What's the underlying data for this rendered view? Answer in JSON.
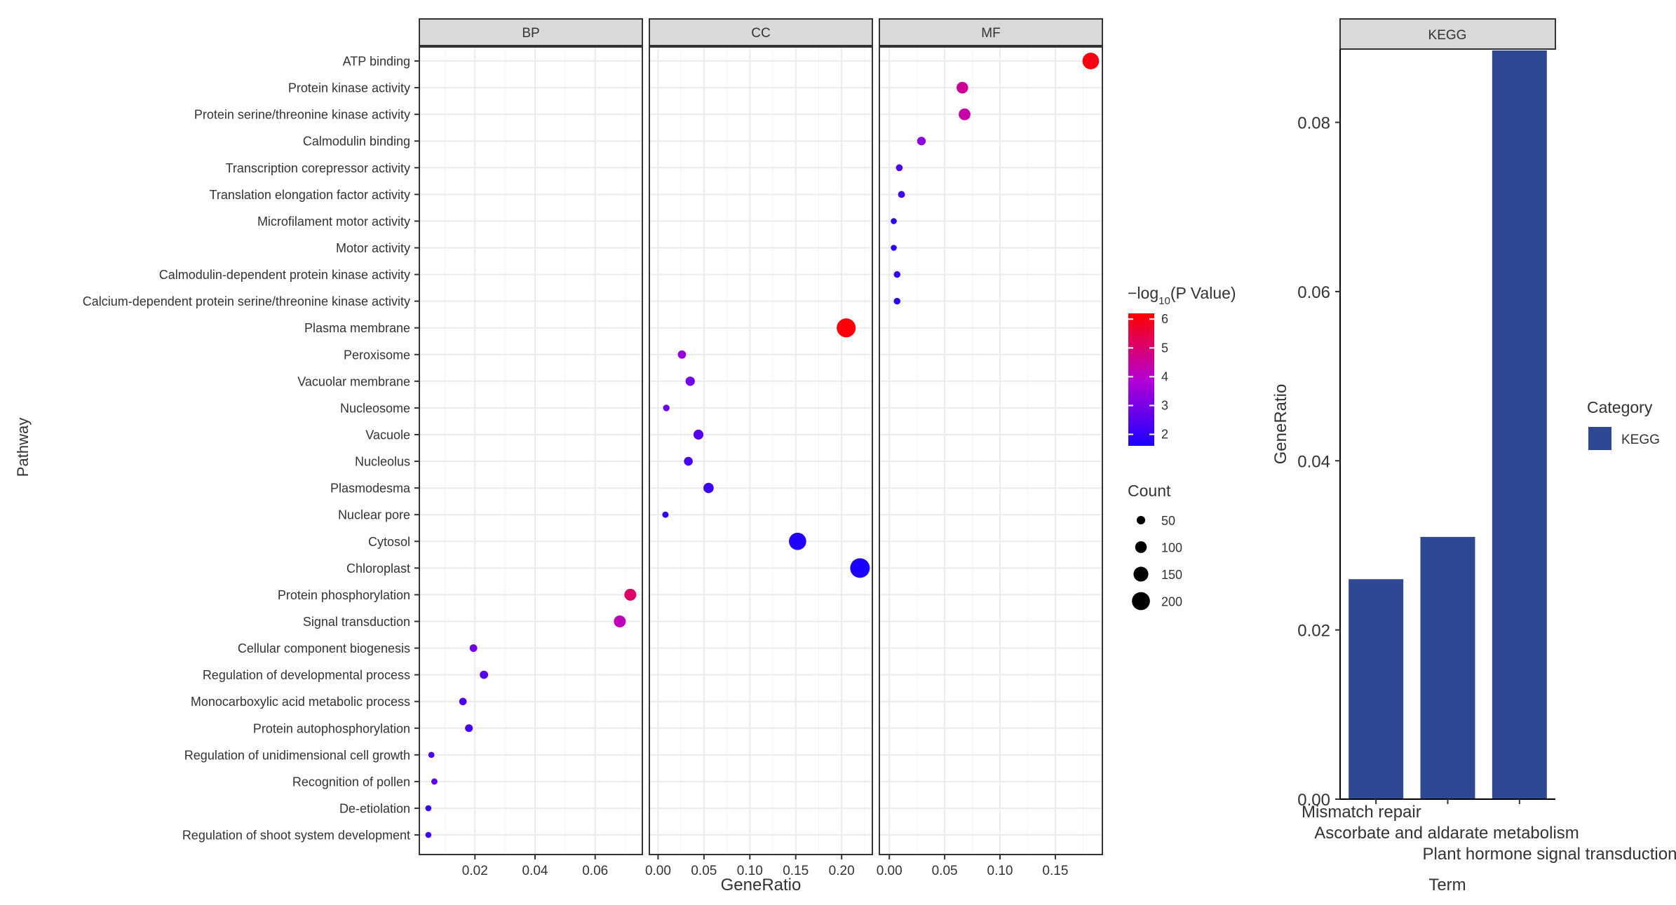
{
  "chart_data": [
    {
      "type": "scatter",
      "facets": [
        "BP",
        "CC",
        "MF"
      ],
      "xlabel": "GeneRatio",
      "ylabel": "Pathway",
      "x_ticks": {
        "BP": [
          "0.02",
          "0.04",
          "0.06"
        ],
        "CC": [
          "0.00",
          "0.05",
          "0.10",
          "0.15",
          "0.20"
        ],
        "MF": [
          "0.00",
          "0.05",
          "0.10",
          "0.15"
        ]
      },
      "xlim": {
        "BP": [
          0.0015,
          0.0757
        ],
        "CC": [
          -0.0095,
          0.2335
        ],
        "MF": [
          -0.009,
          0.1925
        ]
      },
      "color_legend": {
        "title_prefix": "−log",
        "title_sub": "10",
        "title_suffix": "(P Value)",
        "ticks": [
          "6",
          "5",
          "4",
          "3",
          "2"
        ],
        "low_color": "#1a00ff",
        "high_color": "#ff0000",
        "range": [
          1.6,
          6.2
        ]
      },
      "size_legend": {
        "title": "Count",
        "labels": [
          "50",
          "100",
          "150",
          "200"
        ],
        "values": [
          50,
          100,
          150,
          200
        ]
      },
      "pathways": [
        "ATP binding",
        "Protein kinase activity",
        "Protein serine/threonine kinase activity",
        "Calmodulin binding",
        "Transcription corepressor activity",
        "Translation elongation factor activity",
        "Microfilament motor activity",
        "Motor activity",
        "Calmodulin-dependent protein kinase activity",
        "Calcium-dependent protein serine/threonine kinase activity",
        "Plasma membrane",
        "Peroxisome",
        "Vacuolar membrane",
        "Nucleosome",
        "Vacuole",
        "Nucleolus",
        "Plasmodesma",
        "Nuclear pore",
        "Cytosol",
        "Chloroplast",
        "Protein phosphorylation",
        "Signal transduction",
        "Cellular component biogenesis",
        "Regulation of developmental process",
        "Monocarboxylic acid metabolic process",
        "Protein autophosphorylation",
        "Regulation of unidimensional cell growth",
        "Recognition of pollen",
        "De-etiolation",
        "Regulation of shoot system development"
      ],
      "points": [
        {
          "pathway": "ATP binding",
          "facet": "MF",
          "ratio": 0.182,
          "count": 165,
          "logp": 6.0
        },
        {
          "pathway": "Protein kinase activity",
          "facet": "MF",
          "ratio": 0.066,
          "count": 90,
          "logp": 4.6
        },
        {
          "pathway": "Protein serine/threonine kinase activity",
          "facet": "MF",
          "ratio": 0.068,
          "count": 92,
          "logp": 4.4
        },
        {
          "pathway": "Calmodulin binding",
          "facet": "MF",
          "ratio": 0.029,
          "count": 45,
          "logp": 3.3
        },
        {
          "pathway": "Transcription corepressor activity",
          "facet": "MF",
          "ratio": 0.009,
          "count": 18,
          "logp": 2.4
        },
        {
          "pathway": "Translation elongation factor activity",
          "facet": "MF",
          "ratio": 0.011,
          "count": 20,
          "logp": 2.2
        },
        {
          "pathway": "Microfilament motor activity",
          "facet": "MF",
          "ratio": 0.004,
          "count": 6,
          "logp": 1.8
        },
        {
          "pathway": "Motor activity",
          "facet": "MF",
          "ratio": 0.004,
          "count": 6,
          "logp": 1.8
        },
        {
          "pathway": "Calmodulin-dependent protein kinase activity",
          "facet": "MF",
          "ratio": 0.007,
          "count": 16,
          "logp": 2.0
        },
        {
          "pathway": "Calcium-dependent protein serine/threonine kinase activity",
          "facet": "MF",
          "ratio": 0.007,
          "count": 16,
          "logp": 1.9
        },
        {
          "pathway": "Plasma membrane",
          "facet": "CC",
          "ratio": 0.205,
          "count": 200,
          "logp": 6.1
        },
        {
          "pathway": "Peroxisome",
          "facet": "CC",
          "ratio": 0.026,
          "count": 40,
          "logp": 3.4
        },
        {
          "pathway": "Vacuolar membrane",
          "facet": "CC",
          "ratio": 0.035,
          "count": 55,
          "logp": 2.9
        },
        {
          "pathway": "Nucleosome",
          "facet": "CC",
          "ratio": 0.009,
          "count": 15,
          "logp": 2.8
        },
        {
          "pathway": "Vacuole",
          "facet": "CC",
          "ratio": 0.044,
          "count": 65,
          "logp": 2.5
        },
        {
          "pathway": "Nucleolus",
          "facet": "CC",
          "ratio": 0.033,
          "count": 48,
          "logp": 2.3
        },
        {
          "pathway": "Plasmodesma",
          "facet": "CC",
          "ratio": 0.055,
          "count": 70,
          "logp": 2.1
        },
        {
          "pathway": "Nuclear pore",
          "facet": "CC",
          "ratio": 0.008,
          "count": 10,
          "logp": 2.0
        },
        {
          "pathway": "Cytosol",
          "facet": "CC",
          "ratio": 0.152,
          "count": 175,
          "logp": 1.7
        },
        {
          "pathway": "Chloroplast",
          "facet": "CC",
          "ratio": 0.22,
          "count": 210,
          "logp": 1.6
        },
        {
          "pathway": "Protein phosphorylation",
          "facet": "BP",
          "ratio": 0.0717,
          "count": 95,
          "logp": 5.1
        },
        {
          "pathway": "Signal transduction",
          "facet": "BP",
          "ratio": 0.0682,
          "count": 95,
          "logp": 4.2
        },
        {
          "pathway": "Cellular component biogenesis",
          "facet": "BP",
          "ratio": 0.0195,
          "count": 30,
          "logp": 2.9
        },
        {
          "pathway": "Regulation of developmental process",
          "facet": "BP",
          "ratio": 0.023,
          "count": 40,
          "logp": 2.5
        },
        {
          "pathway": "Monocarboxylic acid metabolic process",
          "facet": "BP",
          "ratio": 0.016,
          "count": 28,
          "logp": 2.4
        },
        {
          "pathway": "Protein autophosphorylation",
          "facet": "BP",
          "ratio": 0.018,
          "count": 32,
          "logp": 2.2
        },
        {
          "pathway": "Regulation of unidimensional cell growth",
          "facet": "BP",
          "ratio": 0.0055,
          "count": 8,
          "logp": 2.3
        },
        {
          "pathway": "Recognition of pollen",
          "facet": "BP",
          "ratio": 0.0065,
          "count": 10,
          "logp": 2.6
        },
        {
          "pathway": "De-etiolation",
          "facet": "BP",
          "ratio": 0.0045,
          "count": 6,
          "logp": 2.0
        },
        {
          "pathway": "Regulation of shoot system development",
          "facet": "BP",
          "ratio": 0.0045,
          "count": 6,
          "logp": 2.1
        }
      ]
    },
    {
      "type": "bar",
      "facet": "KEGG",
      "categories": [
        "Mismatch repair",
        "Ascorbate and aldarate metabolism",
        "Plant hormone signal transduction"
      ],
      "values": [
        0.026,
        0.031,
        0.0885
      ],
      "xlabel": "Term",
      "ylabel": "GeneRatio",
      "ylim": [
        0,
        0.0885
      ],
      "y_ticks": [
        "0.00",
        "0.02",
        "0.04",
        "0.06",
        "0.08"
      ],
      "bar_color": "#2f4894",
      "legend": {
        "title": "Category",
        "entries": [
          "KEGG"
        ]
      }
    }
  ]
}
